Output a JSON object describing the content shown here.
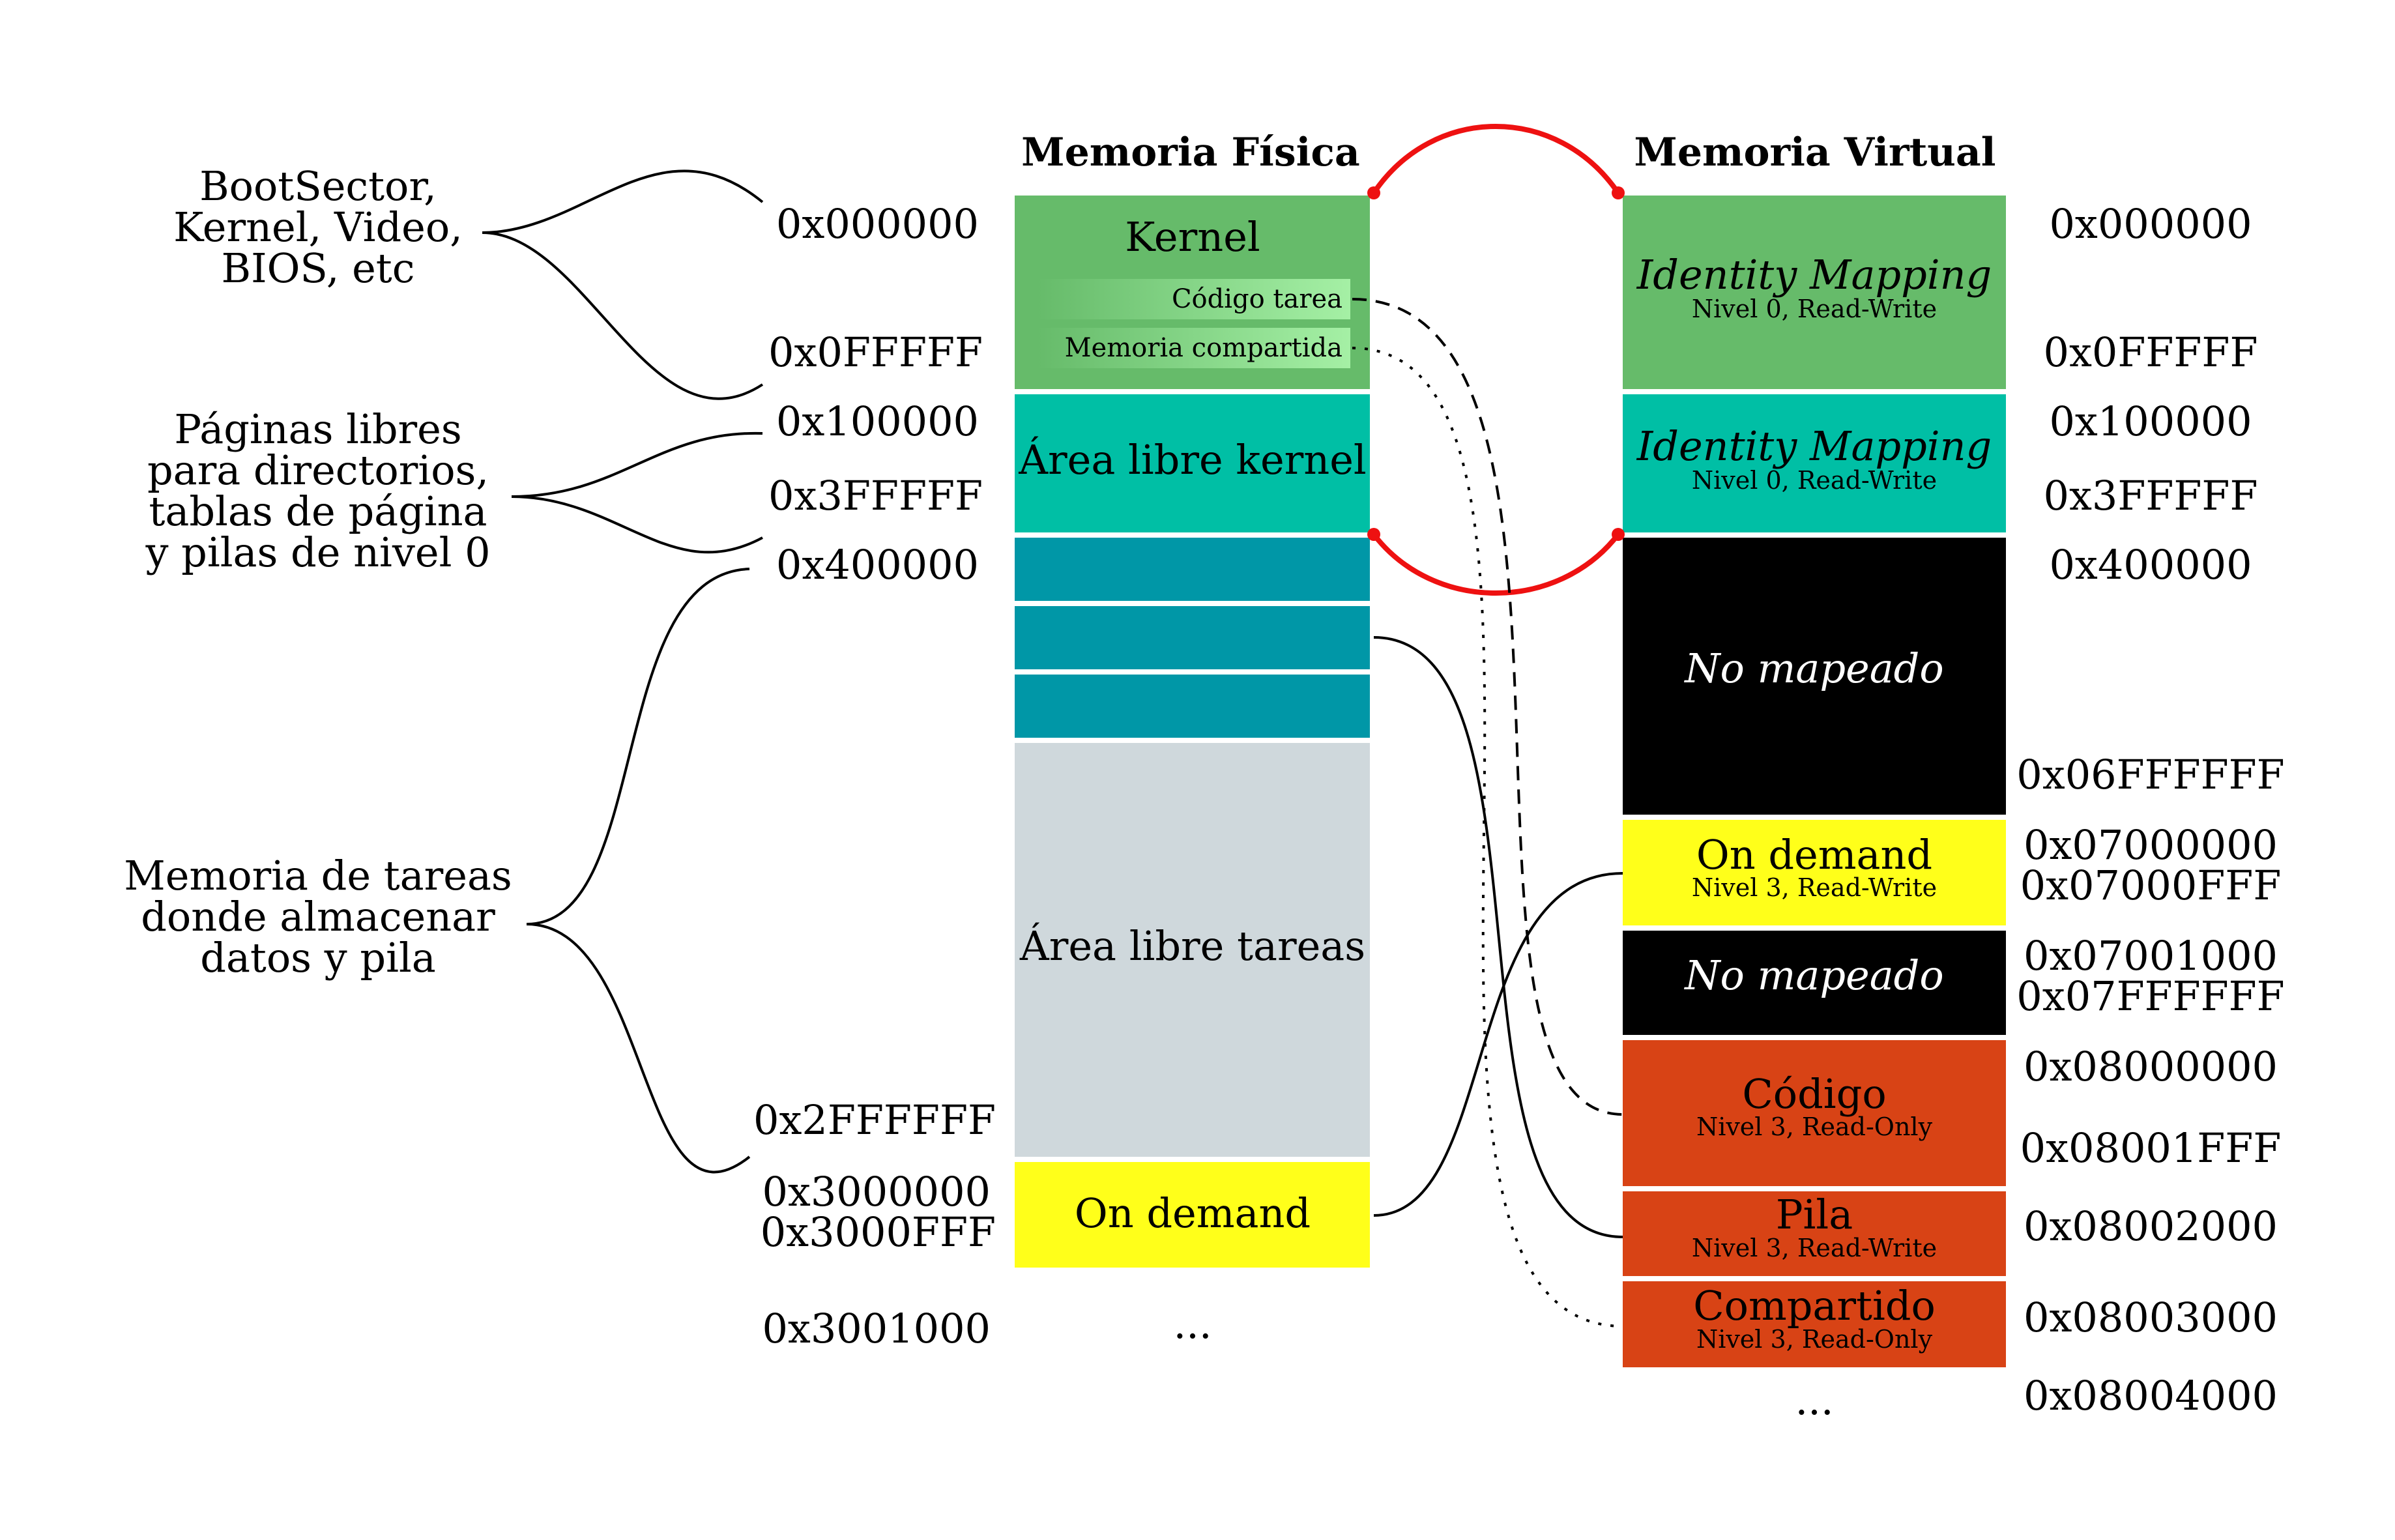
{
  "headers": {
    "physical": "Memoria Física",
    "virtual": "Memoria Virtual"
  },
  "left_notes": {
    "boot": [
      "BootSector,",
      "Kernel, Video,",
      "BIOS, etc"
    ],
    "pages": [
      "Páginas libres",
      "para directorios,",
      "tablas de página",
      "y pilas de nivel 0"
    ],
    "tasks": [
      "Memoria de tareas",
      "donde almacenar",
      "datos y pila"
    ]
  },
  "physical_addresses": {
    "a0": "0x000000",
    "a1": "0x0FFFFF",
    "a2": "0x100000",
    "a3": "0x3FFFFF",
    "a4": "0x400000",
    "a5": "0x2FFFFFF",
    "a6": "0x3000000",
    "a7": "0x3000FFF",
    "a8": "0x3001000"
  },
  "physical_blocks": {
    "kernel": "Kernel",
    "codigo_tarea": "Código tarea",
    "memoria_compartida": "Memoria compartida",
    "area_kernel": "Área libre kernel",
    "area_tareas": "Área libre tareas",
    "on_demand": "On demand",
    "ellipsis": "..."
  },
  "virtual_blocks": {
    "identity1_title": "Identity Mapping",
    "identity1_sub": "Nivel 0, Read-Write",
    "identity2_title": "Identity Mapping",
    "identity2_sub": "Nivel 0, Read-Write",
    "nomap1": "No mapeado",
    "ondemand_title": "On demand",
    "ondemand_sub": "Nivel 3, Read-Write",
    "nomap2": "No mapeado",
    "codigo_title": "Código",
    "codigo_sub": "Nivel 3, Read-Only",
    "pila_title": "Pila",
    "pila_sub": "Nivel 3, Read-Write",
    "compartido_title": "Compartido",
    "compartido_sub": "Nivel 3, Read-Only",
    "ellipsis": "..."
  },
  "virtual_addresses": {
    "v0": "0x000000",
    "v1": "0x0FFFFF",
    "v2": "0x100000",
    "v3": "0x3FFFFF",
    "v4": "0x400000",
    "v5": "0x06FFFFFF",
    "v6": "0x07000000",
    "v7": "0x07000FFF",
    "v8": "0x07001000",
    "v9": "0x07FFFFFF",
    "v10": "0x08000000",
    "v11": "0x08001FFF",
    "v12": "0x08002000",
    "v13": "0x08003000",
    "v14": "0x08004000"
  },
  "colors": {
    "kernel_green": "#66bb6a",
    "light_green": "#a5f0a5",
    "teal": "#00bfa5",
    "dark_teal": "#0097a7",
    "gray": "#cfd8dc",
    "yellow": "#ffff1a",
    "black": "#000000",
    "orange": "#d84315",
    "red": "#ee1111"
  }
}
